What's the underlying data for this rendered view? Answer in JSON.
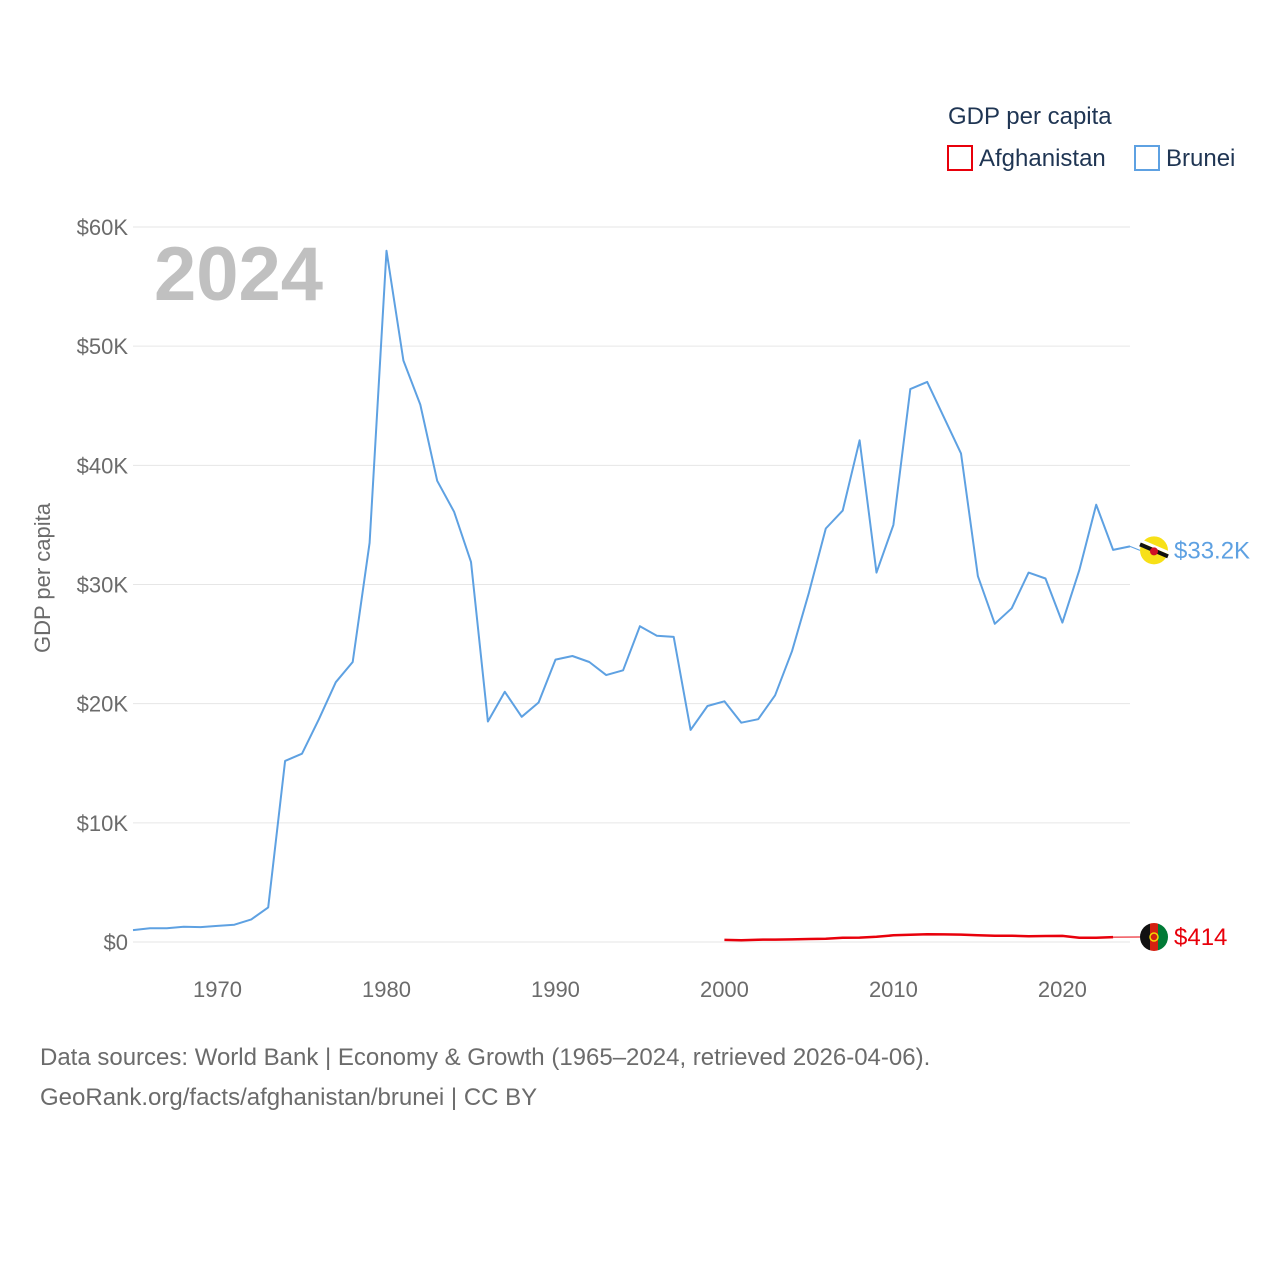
{
  "chart_data": {
    "type": "line",
    "year_label": "2024",
    "ylabel": "GDP per capita",
    "ylim": [
      0,
      60000
    ],
    "xlim": [
      1965,
      2024
    ],
    "y_ticks": [
      {
        "value": 0,
        "label": "$0"
      },
      {
        "value": 10000,
        "label": "$10K"
      },
      {
        "value": 20000,
        "label": "$20K"
      },
      {
        "value": 30000,
        "label": "$30K"
      },
      {
        "value": 40000,
        "label": "$40K"
      },
      {
        "value": 50000,
        "label": "$50K"
      },
      {
        "value": 60000,
        "label": "$60K"
      }
    ],
    "x_ticks": [
      {
        "value": 1970,
        "label": "1970"
      },
      {
        "value": 1980,
        "label": "1980"
      },
      {
        "value": 1990,
        "label": "1990"
      },
      {
        "value": 2000,
        "label": "2000"
      },
      {
        "value": 2010,
        "label": "2010"
      },
      {
        "value": 2020,
        "label": "2020"
      }
    ],
    "legend": {
      "title": "GDP per capita",
      "placement": "top-right"
    },
    "series": [
      {
        "name": "Afghanistan",
        "color": "#e8000b",
        "end_label": "$414",
        "flag_icon": "afghanistan-flag-icon",
        "points": [
          [
            2000,
            180
          ],
          [
            2001,
            140
          ],
          [
            2002,
            190
          ],
          [
            2003,
            200
          ],
          [
            2004,
            220
          ],
          [
            2005,
            250
          ],
          [
            2006,
            270
          ],
          [
            2007,
            360
          ],
          [
            2008,
            370
          ],
          [
            2009,
            440
          ],
          [
            2010,
            560
          ],
          [
            2011,
            610
          ],
          [
            2012,
            650
          ],
          [
            2013,
            640
          ],
          [
            2014,
            620
          ],
          [
            2015,
            570
          ],
          [
            2016,
            520
          ],
          [
            2017,
            520
          ],
          [
            2018,
            490
          ],
          [
            2019,
            500
          ],
          [
            2020,
            510
          ],
          [
            2021,
            360
          ],
          [
            2022,
            350
          ],
          [
            2023,
            410
          ]
        ]
      },
      {
        "name": "Brunei",
        "color": "#5ea1e2",
        "end_label": "$33.2K",
        "flag_icon": "brunei-flag-icon",
        "points": [
          [
            1965,
            1000
          ],
          [
            1966,
            1150
          ],
          [
            1967,
            1150
          ],
          [
            1968,
            1280
          ],
          [
            1969,
            1250
          ],
          [
            1970,
            1350
          ],
          [
            1971,
            1450
          ],
          [
            1972,
            1900
          ],
          [
            1973,
            2900
          ],
          [
            1974,
            15200
          ],
          [
            1975,
            15800
          ],
          [
            1976,
            18700
          ],
          [
            1977,
            21800
          ],
          [
            1978,
            23500
          ],
          [
            1979,
            33500
          ],
          [
            1980,
            58000
          ],
          [
            1981,
            48800
          ],
          [
            1982,
            45100
          ],
          [
            1983,
            38700
          ],
          [
            1984,
            36100
          ],
          [
            1985,
            31900
          ],
          [
            1986,
            18500
          ],
          [
            1987,
            21000
          ],
          [
            1988,
            18900
          ],
          [
            1989,
            20100
          ],
          [
            1990,
            23700
          ],
          [
            1991,
            24000
          ],
          [
            1992,
            23500
          ],
          [
            1993,
            22400
          ],
          [
            1994,
            22800
          ],
          [
            1995,
            26500
          ],
          [
            1996,
            25700
          ],
          [
            1997,
            25600
          ],
          [
            1998,
            17800
          ],
          [
            1999,
            19800
          ],
          [
            2000,
            20200
          ],
          [
            2001,
            18400
          ],
          [
            2002,
            18700
          ],
          [
            2003,
            20700
          ],
          [
            2004,
            24400
          ],
          [
            2005,
            29300
          ],
          [
            2006,
            34700
          ],
          [
            2007,
            36200
          ],
          [
            2008,
            42100
          ],
          [
            2009,
            31000
          ],
          [
            2010,
            35000
          ],
          [
            2011,
            46400
          ],
          [
            2012,
            47000
          ],
          [
            2013,
            44000
          ],
          [
            2014,
            41000
          ],
          [
            2015,
            30700
          ],
          [
            2016,
            26700
          ],
          [
            2017,
            28000
          ],
          [
            2018,
            31000
          ],
          [
            2019,
            30500
          ],
          [
            2020,
            26800
          ],
          [
            2021,
            31200
          ],
          [
            2022,
            36700
          ],
          [
            2023,
            32900
          ],
          [
            2024,
            33200
          ]
        ]
      }
    ]
  },
  "footer": {
    "sources": "Data sources: World Bank | Economy & Growth (1965–2024, retrieved 2026-04-06).",
    "attribution": "GeoRank.org/facts/afghanistan/brunei | CC BY"
  }
}
